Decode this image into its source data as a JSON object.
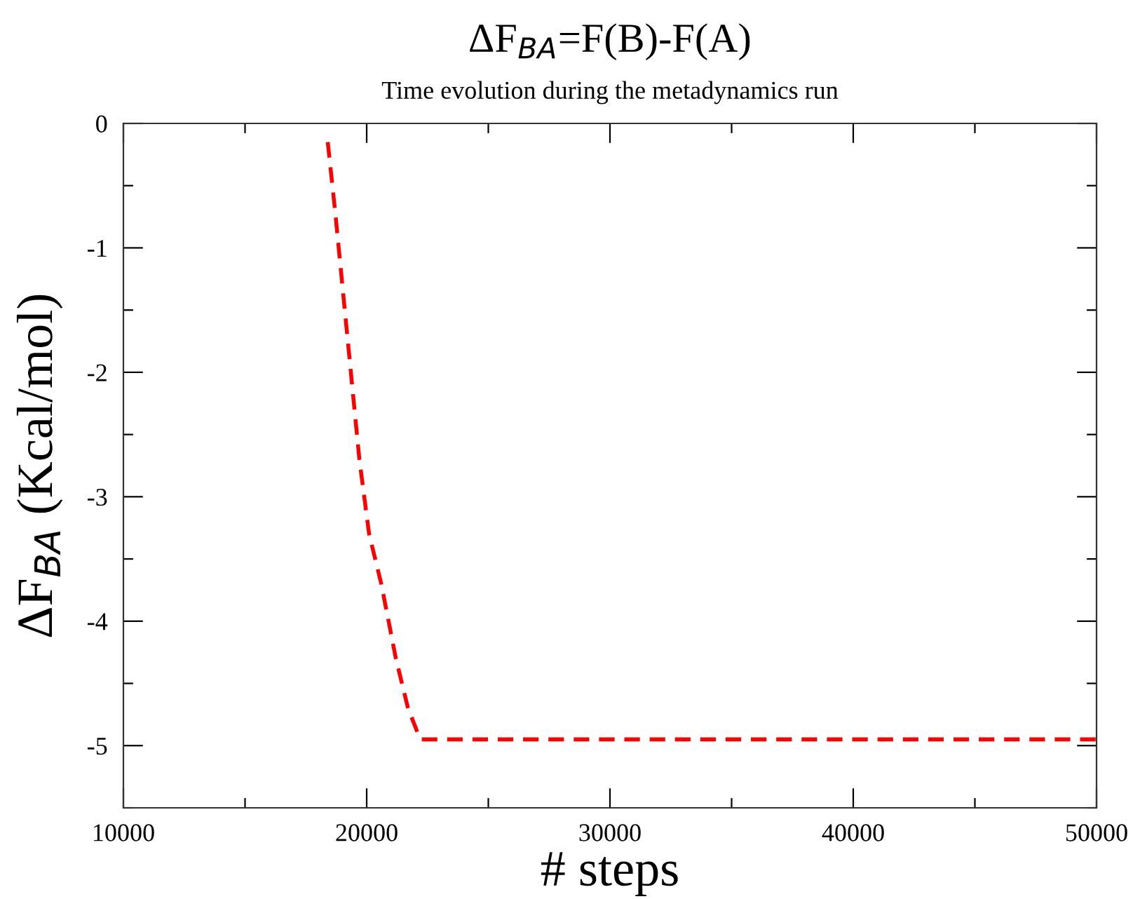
{
  "chart_data": {
    "type": "line",
    "title": "ΔF$_{BA}$=F(B)-F(A)",
    "subtitle": "Time evolution during the metadynamics run",
    "xlabel": "# steps",
    "ylabel": "ΔF$_{BA}$ (Kcal/mol)",
    "xlim": [
      10000,
      50000
    ],
    "ylim": [
      -5.5,
      0
    ],
    "xticks": [
      10000,
      {
        "value": 15000,
        "label": null
      },
      20000,
      {
        "value": 25000,
        "label": null
      },
      30000,
      {
        "value": 35000,
        "label": null
      },
      40000,
      {
        "value": 45000,
        "label": null
      },
      50000
    ],
    "yticks": [
      {
        "value": -5.5,
        "label": null
      },
      -5,
      {
        "value": -4.5,
        "label": null
      },
      -4,
      {
        "value": -3.5,
        "label": null
      },
      -3,
      {
        "value": -2.5,
        "label": null
      },
      -2,
      {
        "value": -1.5,
        "label": null
      },
      -1,
      {
        "value": -0.5,
        "label": null
      },
      0
    ],
    "grid": false,
    "line_style": "dashed",
    "marker": "none",
    "series": [
      {
        "color": "#ff0000",
        "x": [
          18400,
          18700,
          19000,
          19300,
          19700,
          20100,
          20600,
          21200,
          21700,
          22200,
          50000
        ],
        "values": [
          -0.15,
          -0.7,
          -1.3,
          -1.9,
          -2.7,
          -3.3,
          -3.7,
          -4.3,
          -4.7,
          -4.95,
          -4.95
        ]
      }
    ]
  }
}
